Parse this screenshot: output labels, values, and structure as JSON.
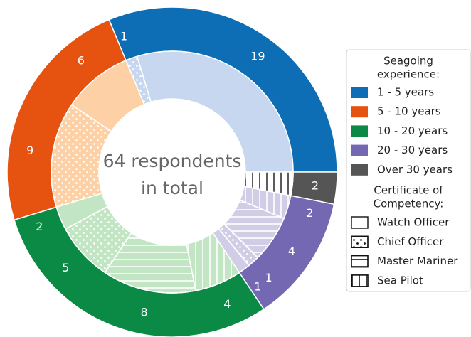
{
  "chart_data": {
    "type": "nested-donut",
    "center_text": [
      "64 respondents",
      "in total"
    ],
    "legend_title": [
      "Seagoing",
      "experience:"
    ],
    "certificate_title": [
      "Certificate of",
      "Competency:"
    ],
    "certificates": [
      "Watch Officer",
      "Chief Officer",
      "Master Mariner",
      "Sea Pilot"
    ],
    "patterns": [
      "none",
      "dots",
      "horizontal",
      "vertical"
    ],
    "series": [
      {
        "name": "1 - 5 years",
        "color": "#0d6db5",
        "inner_color": "#c6d7ef",
        "hatch_color": "#ffffff",
        "values": [
          19,
          1,
          0,
          0
        ]
      },
      {
        "name": "5 - 10 years",
        "color": "#e6520f",
        "inner_color": "#fdd0a5",
        "hatch_color": "#ffffff",
        "values": [
          6,
          9,
          0,
          0
        ]
      },
      {
        "name": "10 - 20 years",
        "color": "#0b8a45",
        "inner_color": "#c2e5c4",
        "hatch_color": "#ffffff",
        "values": [
          2,
          5,
          8,
          4
        ]
      },
      {
        "name": "20 - 30 years",
        "color": "#7368b1",
        "inner_color": "#d1cde7",
        "hatch_color": "#ffffff",
        "values": [
          1,
          1,
          4,
          2
        ]
      },
      {
        "name": "Over 30 years",
        "color": "#555555",
        "inner_color": "#ffffff",
        "hatch_color": "#333333",
        "values": [
          0,
          0,
          0,
          2
        ]
      }
    ]
  }
}
